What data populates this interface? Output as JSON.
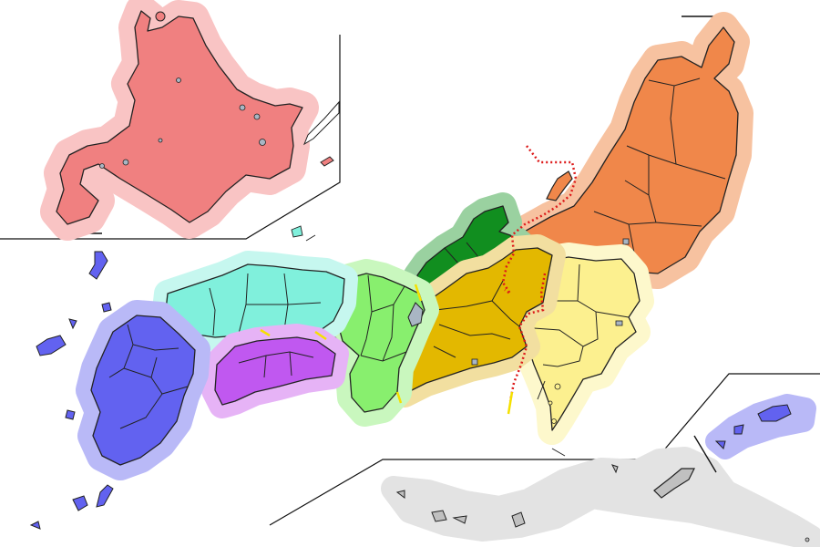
{
  "map": {
    "regions": [
      {
        "id": "hokkaido",
        "fill": "#f08080",
        "halo": "#f9c4c4",
        "edge": "#222222"
      },
      {
        "id": "tohoku",
        "fill": "#f0874a",
        "halo": "#f7c2a0",
        "edge": "#222222"
      },
      {
        "id": "kanto",
        "fill": "#fcf08f",
        "halo": "#fdf8cc",
        "edge": "#222222"
      },
      {
        "id": "hokuriku",
        "fill": "#118e1f",
        "halo": "#9ad1a0",
        "edge": "#222222"
      },
      {
        "id": "tokai",
        "fill": "#e3b800",
        "halo": "#f2dfa0",
        "edge": "#222222"
      },
      {
        "id": "kinki",
        "fill": "#88ef6e",
        "halo": "#c9f7be",
        "edge": "#222222"
      },
      {
        "id": "chugoku",
        "fill": "#80f0dc",
        "halo": "#c6f7ef",
        "edge": "#222222"
      },
      {
        "id": "shikoku",
        "fill": "#c058f0",
        "halo": "#e6b3f6",
        "edge": "#222222"
      },
      {
        "id": "kyushu",
        "fill": "#6262f0",
        "halo": "#b9b9f7",
        "edge": "#222222"
      },
      {
        "id": "okinawa",
        "fill": "#c0c0c0",
        "halo": "#e3e3e3",
        "edge": "#222222"
      }
    ],
    "boundary_colors": {
      "dotted": "#dd1a1a",
      "solid": "#f5e000"
    },
    "water_fill": "#a9b6c4"
  }
}
